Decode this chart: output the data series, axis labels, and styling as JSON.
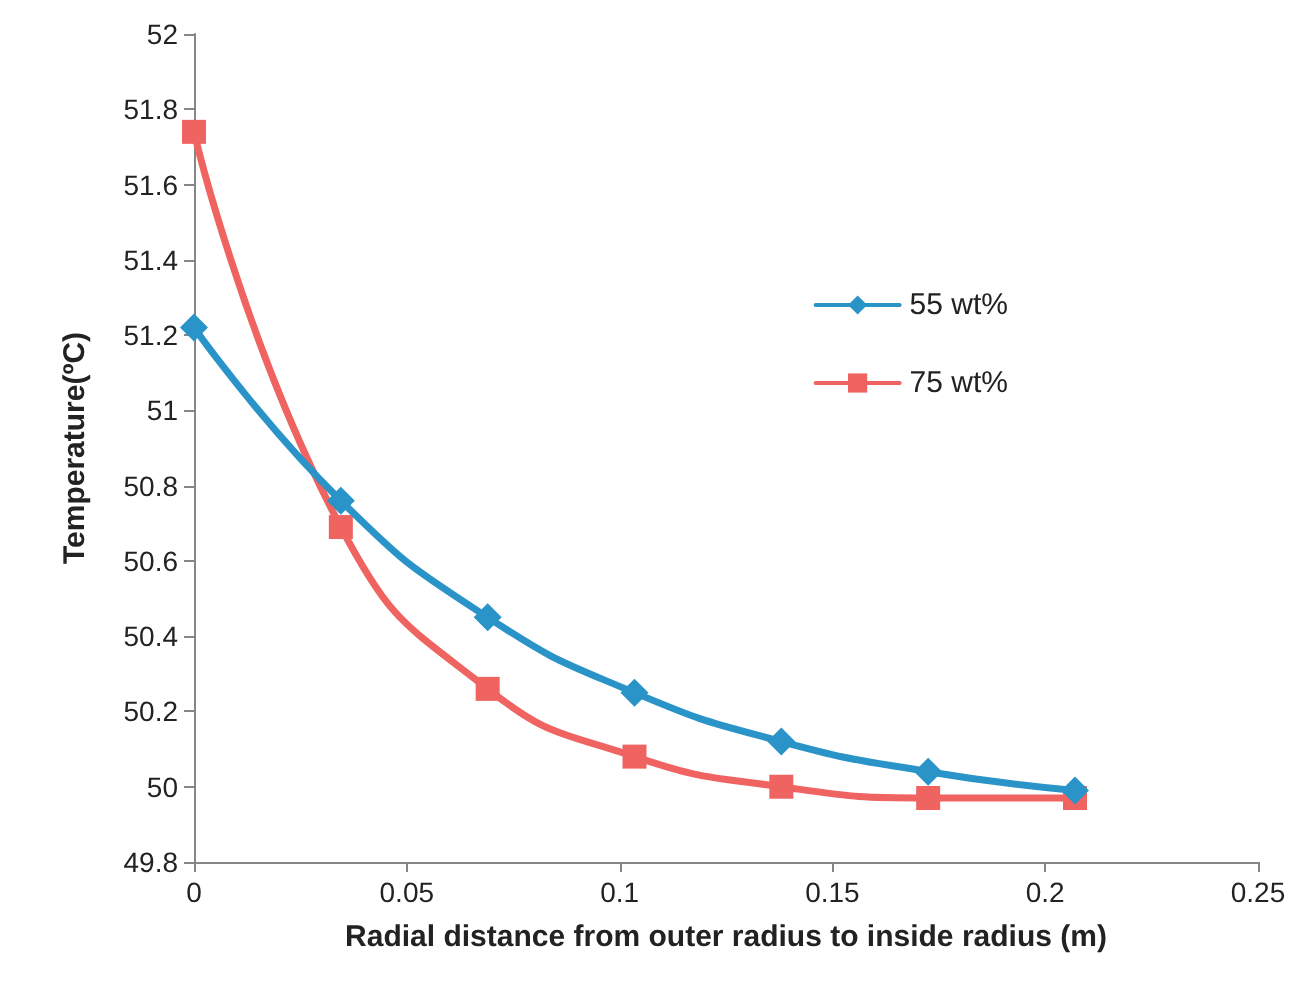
{
  "chart_data": {
    "type": "line",
    "xlabel": "Radial distance from outer radius to inside radius (m)",
    "ylabel": "Temperature(ºC)",
    "x": [
      0,
      0.0345,
      0.069,
      0.1035,
      0.138,
      0.1725,
      0.207
    ],
    "series": [
      {
        "name": "55 wt%",
        "color": "#2a94c9",
        "marker": "diamond",
        "values": [
          51.22,
          50.76,
          50.45,
          50.25,
          50.12,
          50.04,
          49.99
        ]
      },
      {
        "name": "75 wt%",
        "color": "#ef6360",
        "marker": "square",
        "values": [
          51.74,
          50.69,
          50.26,
          50.08,
          50.0,
          49.97,
          49.97
        ]
      }
    ],
    "xlim": [
      0,
      0.25
    ],
    "xticks": [
      0,
      0.05,
      0.1,
      0.15,
      0.2,
      0.25
    ],
    "ylim": [
      49.8,
      52
    ],
    "yticks": [
      49.8,
      50,
      50.2,
      50.4,
      50.6,
      50.8,
      51,
      51.2,
      51.4,
      51.6,
      51.8,
      52
    ],
    "grid": false,
    "legend": "right"
  }
}
